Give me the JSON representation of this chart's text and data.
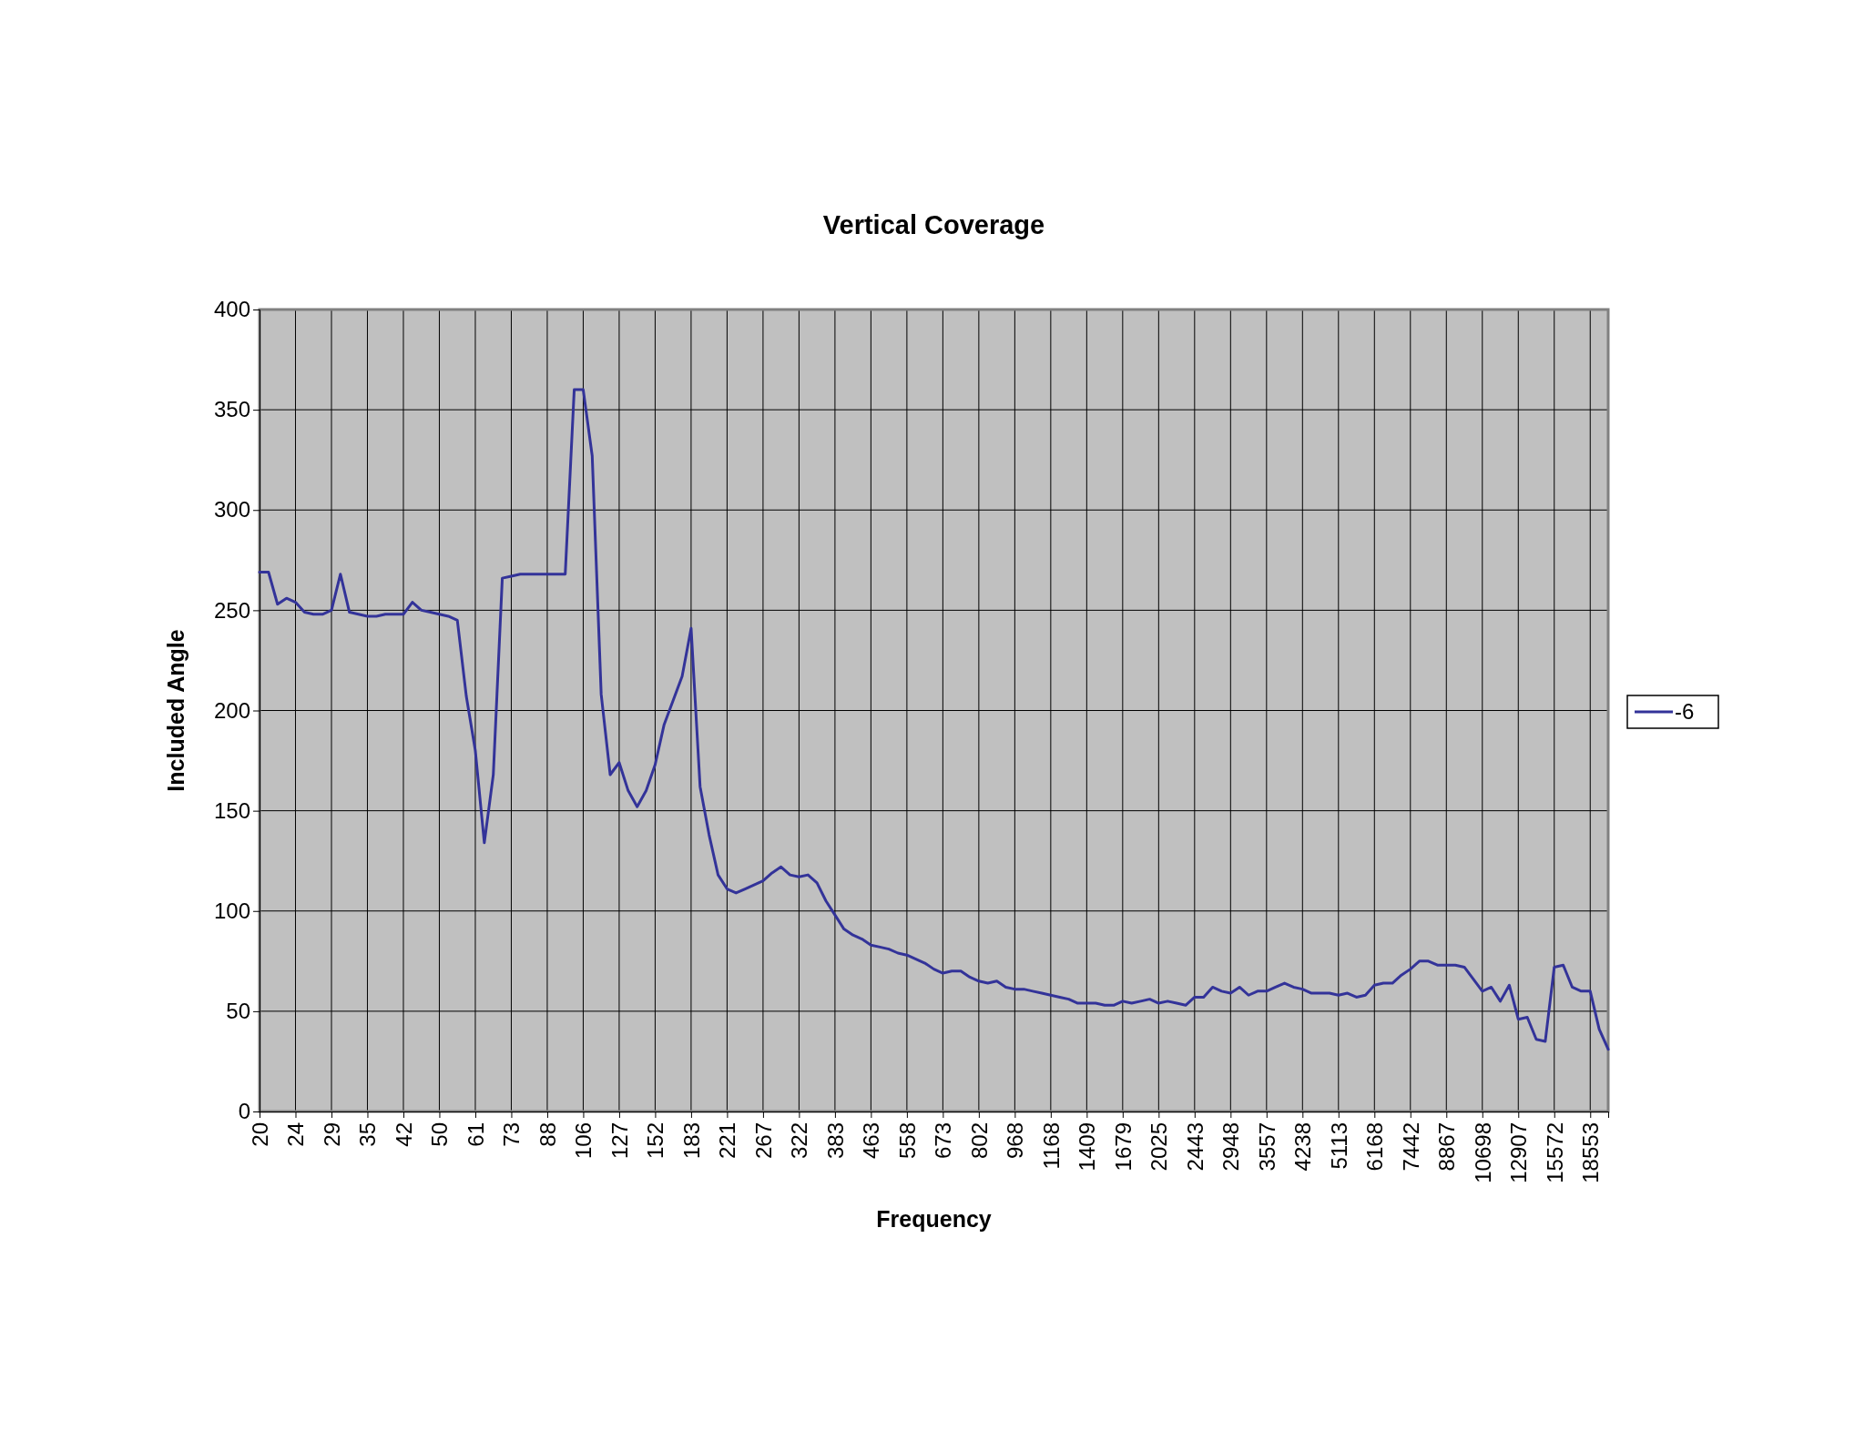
{
  "chart_data": {
    "type": "line",
    "title": "Vertical Coverage",
    "xlabel": "Frequency",
    "ylabel": "Included Angle",
    "categories": [
      "20",
      null,
      null,
      null,
      "24",
      null,
      null,
      null,
      "29",
      null,
      null,
      null,
      "35",
      null,
      null,
      null,
      "42",
      null,
      null,
      null,
      "50",
      null,
      null,
      null,
      "61",
      null,
      null,
      null,
      "73",
      null,
      null,
      null,
      "88",
      null,
      null,
      null,
      "106",
      null,
      null,
      null,
      "127",
      null,
      null,
      null,
      "152",
      null,
      null,
      null,
      "183",
      null,
      null,
      null,
      "221",
      null,
      null,
      null,
      "267",
      null,
      null,
      null,
      "322",
      null,
      null,
      null,
      "383",
      null,
      null,
      null,
      "463",
      null,
      null,
      null,
      "558",
      null,
      null,
      null,
      "673",
      null,
      null,
      null,
      "802",
      null,
      null,
      null,
      "968",
      null,
      null,
      null,
      "1168",
      null,
      null,
      null,
      "1409",
      null,
      null,
      null,
      "1679",
      null,
      null,
      null,
      "2025",
      null,
      null,
      null,
      "2443",
      null,
      null,
      null,
      "2948",
      null,
      null,
      null,
      "3557",
      null,
      null,
      null,
      "4238",
      null,
      null,
      null,
      "5113",
      null,
      null,
      null,
      "6168",
      null,
      null,
      null,
      "7442",
      null,
      null,
      null,
      "8867",
      null,
      null,
      null,
      "10698",
      null,
      null,
      null,
      "12907",
      null,
      null,
      null,
      "15572",
      null,
      null,
      null,
      "18553",
      null,
      null
    ],
    "series": [
      {
        "name": "-6",
        "color": "#333399",
        "values": [
          269,
          269,
          253,
          256,
          254,
          249,
          248,
          248,
          250,
          268,
          249,
          248,
          247,
          247,
          248,
          248,
          248,
          254,
          250,
          249,
          248,
          247,
          245,
          207,
          180,
          134,
          168,
          266,
          267,
          268,
          268,
          268,
          268,
          268,
          268,
          360,
          360,
          327,
          208,
          168,
          174,
          160,
          152,
          160,
          173,
          193,
          205,
          217,
          241,
          162,
          138,
          118,
          111,
          109,
          111,
          113,
          115,
          119,
          122,
          118,
          117,
          118,
          114,
          105,
          98,
          91,
          88,
          86,
          83,
          82,
          81,
          79,
          78,
          76,
          74,
          71,
          69,
          70,
          70,
          67,
          65,
          64,
          65,
          62,
          61,
          61,
          60,
          59,
          58,
          57,
          56,
          54,
          54,
          54,
          53,
          53,
          55,
          54,
          55,
          56,
          54,
          55,
          54,
          53,
          57,
          57,
          62,
          60,
          59,
          62,
          58,
          60,
          60,
          62,
          64,
          62,
          61,
          59,
          59,
          59,
          58,
          59,
          57,
          58,
          63,
          64,
          64,
          68,
          71,
          75,
          75,
          73,
          73,
          73,
          72,
          66,
          60,
          62,
          55,
          63,
          46,
          47,
          36,
          35,
          72,
          73,
          62,
          60,
          60,
          41,
          31
        ]
      }
    ],
    "ylim": [
      0,
      400
    ],
    "yticks": [
      0,
      50,
      100,
      150,
      200,
      250,
      300,
      350,
      400
    ],
    "grid": true,
    "legend": "right",
    "line_style": "solid",
    "marker": "none"
  }
}
